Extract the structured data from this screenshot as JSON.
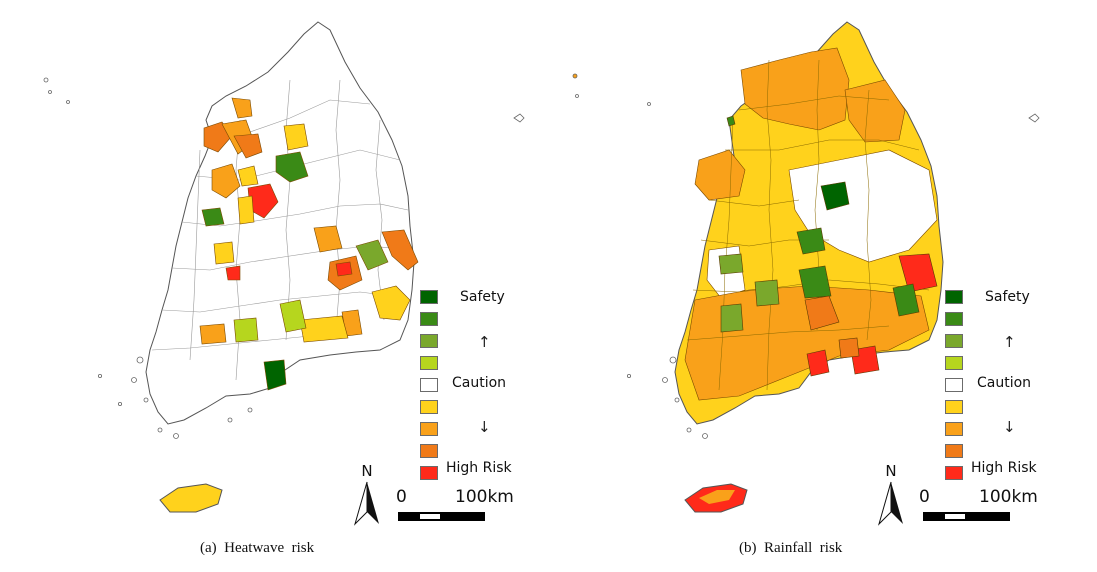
{
  "panels": [
    {
      "id": "a",
      "caption": "(a)  Heatwave  risk",
      "legend": {
        "top_label": "Safety",
        "mid_label": "Caution",
        "bottom_label": "High Risk",
        "up_arrow": "↑",
        "down_arrow": "↓",
        "classes": [
          "#006400",
          "#3a8a16",
          "#7aa82c",
          "#b6d61e",
          "#ffffff",
          "#ffd21c",
          "#f9a11a",
          "#f07a18",
          "#ff2a1a"
        ]
      },
      "north_label": "N",
      "scale": {
        "start": "0",
        "end": "100km"
      }
    },
    {
      "id": "b",
      "caption": "(b)  Rainfall  risk",
      "legend": {
        "top_label": "Safety",
        "mid_label": "Caution",
        "bottom_label": "High Risk",
        "up_arrow": "↑",
        "down_arrow": "↓",
        "classes": [
          "#006400",
          "#3a8a16",
          "#7aa82c",
          "#b6d61e",
          "#ffffff",
          "#ffd21c",
          "#f9a11a",
          "#f07a18",
          "#ff2a1a"
        ]
      },
      "north_label": "N",
      "scale": {
        "start": "0",
        "end": "100km"
      }
    }
  ]
}
